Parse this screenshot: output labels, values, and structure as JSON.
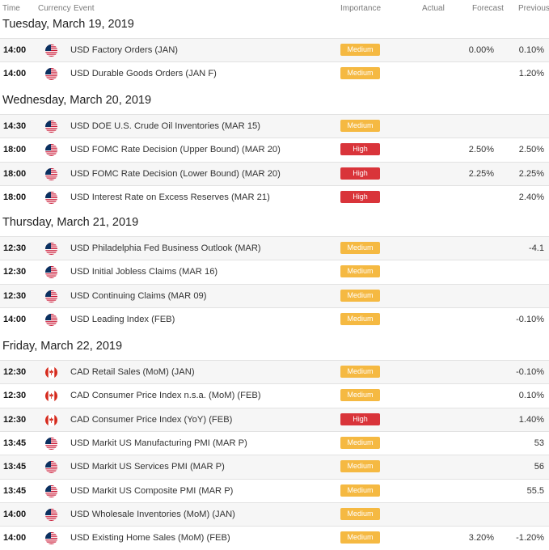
{
  "header": {
    "time": "Time",
    "currency": "Currency",
    "event": "Event",
    "importance": "Importance",
    "actual": "Actual",
    "forecast": "Forecast",
    "previous": "Previous"
  },
  "colors": {
    "medium": "#f5b942",
    "high": "#d9343a"
  },
  "days": [
    {
      "date": "Tuesday, March 19, 2019",
      "events": [
        {
          "time": "14:00",
          "flag": "us-flag-icon",
          "event": "USD Factory Orders (JAN)",
          "importance": "Medium",
          "forecast": "0.00%",
          "previous": "0.10%"
        },
        {
          "time": "14:00",
          "flag": "us-flag-icon",
          "event": "USD Durable Goods Orders (JAN F)",
          "importance": "Medium",
          "forecast": "",
          "previous": "1.20%"
        }
      ]
    },
    {
      "date": "Wednesday, March 20, 2019",
      "events": [
        {
          "time": "14:30",
          "flag": "us-flag-icon",
          "event": "USD DOE U.S. Crude Oil Inventories (MAR 15)",
          "importance": "Medium",
          "forecast": "",
          "previous": ""
        },
        {
          "time": "18:00",
          "flag": "us-flag-icon",
          "event": "USD FOMC Rate Decision (Upper Bound) (MAR 20)",
          "importance": "High",
          "forecast": "2.50%",
          "previous": "2.50%"
        },
        {
          "time": "18:00",
          "flag": "us-flag-icon",
          "event": "USD FOMC Rate Decision (Lower Bound) (MAR 20)",
          "importance": "High",
          "forecast": "2.25%",
          "previous": "2.25%"
        },
        {
          "time": "18:00",
          "flag": "us-flag-icon",
          "event": "USD Interest Rate on Excess Reserves (MAR 21)",
          "importance": "High",
          "forecast": "",
          "previous": "2.40%"
        }
      ]
    },
    {
      "date": "Thursday, March 21, 2019",
      "events": [
        {
          "time": "12:30",
          "flag": "us-flag-icon",
          "event": "USD Philadelphia Fed Business Outlook (MAR)",
          "importance": "Medium",
          "forecast": "",
          "previous": "-4.1"
        },
        {
          "time": "12:30",
          "flag": "us-flag-icon",
          "event": "USD Initial Jobless Claims (MAR 16)",
          "importance": "Medium",
          "forecast": "",
          "previous": ""
        },
        {
          "time": "12:30",
          "flag": "us-flag-icon",
          "event": "USD Continuing Claims (MAR 09)",
          "importance": "Medium",
          "forecast": "",
          "previous": ""
        },
        {
          "time": "14:00",
          "flag": "us-flag-icon",
          "event": "USD Leading Index (FEB)",
          "importance": "Medium",
          "forecast": "",
          "previous": "-0.10%"
        }
      ]
    },
    {
      "date": "Friday, March 22, 2019",
      "events": [
        {
          "time": "12:30",
          "flag": "ca-flag-icon",
          "event": "CAD Retail Sales (MoM) (JAN)",
          "importance": "Medium",
          "forecast": "",
          "previous": "-0.10%"
        },
        {
          "time": "12:30",
          "flag": "ca-flag-icon",
          "event": "CAD Consumer Price Index n.s.a. (MoM) (FEB)",
          "importance": "Medium",
          "forecast": "",
          "previous": "0.10%"
        },
        {
          "time": "12:30",
          "flag": "ca-flag-icon",
          "event": "CAD Consumer Price Index (YoY) (FEB)",
          "importance": "High",
          "forecast": "",
          "previous": "1.40%"
        },
        {
          "time": "13:45",
          "flag": "us-flag-icon",
          "event": "USD Markit US Manufacturing PMI (MAR P)",
          "importance": "Medium",
          "forecast": "",
          "previous": "53"
        },
        {
          "time": "13:45",
          "flag": "us-flag-icon",
          "event": "USD Markit US Services PMI (MAR P)",
          "importance": "Medium",
          "forecast": "",
          "previous": "56"
        },
        {
          "time": "13:45",
          "flag": "us-flag-icon",
          "event": "USD Markit US Composite PMI (MAR P)",
          "importance": "Medium",
          "forecast": "",
          "previous": "55.5"
        },
        {
          "time": "14:00",
          "flag": "us-flag-icon",
          "event": "USD Wholesale Inventories (MoM) (JAN)",
          "importance": "Medium",
          "forecast": "",
          "previous": ""
        },
        {
          "time": "14:00",
          "flag": "us-flag-icon",
          "event": "USD Existing Home Sales (MoM) (FEB)",
          "importance": "Medium",
          "forecast": "3.20%",
          "previous": "-1.20%"
        }
      ]
    }
  ]
}
